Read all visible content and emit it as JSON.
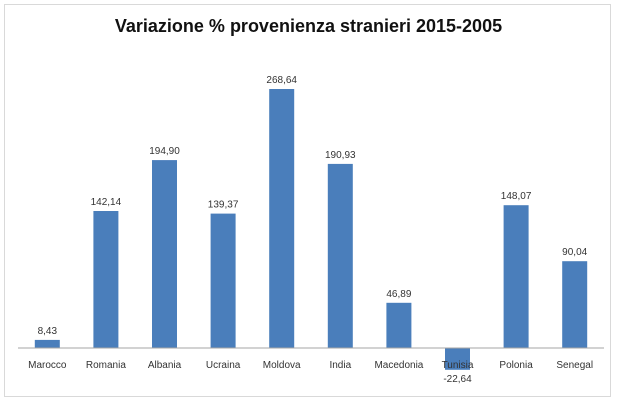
{
  "chart_data": {
    "type": "bar",
    "title": "Variazione % provenienza stranieri 2015-2005",
    "xlabel": "",
    "ylabel": "",
    "categories": [
      "Marocco",
      "Romania",
      "Albania",
      "Ucraina",
      "Moldova",
      "India",
      "Macedonia",
      "Tunisia",
      "Polonia",
      "Senegal"
    ],
    "values": [
      8.43,
      142.14,
      194.9,
      139.37,
      268.64,
      190.93,
      46.89,
      -22.64,
      148.07,
      90.04
    ],
    "data_labels": [
      "8,43",
      "142,14",
      "194,90",
      "139,37",
      "268,64",
      "190,93",
      "46,89",
      "-22,64",
      "148,07",
      "90,04"
    ],
    "ylim": [
      -30,
      270
    ],
    "grid": false,
    "legend": "none",
    "bar_color": "#4a7ebb",
    "baseline_color": "#a6a6a6"
  }
}
